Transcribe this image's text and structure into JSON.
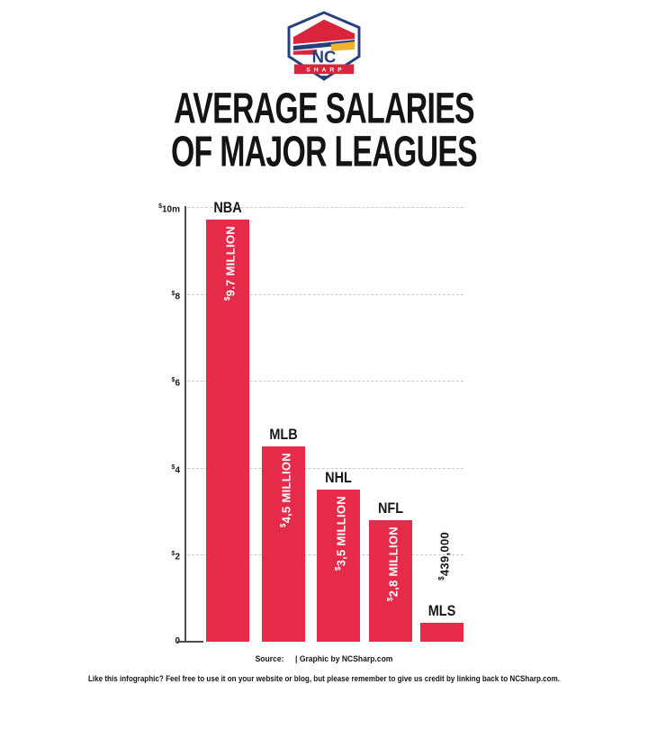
{
  "logo": {
    "nc": "NC",
    "sharp": "SHARP"
  },
  "title": {
    "line1": "AVERAGE SALARIES",
    "line2": "OF MAJOR LEAGUES"
  },
  "chart_data": {
    "type": "bar",
    "title": "Average Salaries of Major Leagues",
    "categories": [
      "NBA",
      "MLB",
      "NHL",
      "NFL",
      "MLS"
    ],
    "values": [
      9.7,
      4.5,
      3.5,
      2.8,
      0.439
    ],
    "value_unit": "million USD",
    "bar_value_labels": [
      "$9.7 MILLION",
      "$4,5 MILLION",
      "$3,5 MILLION",
      "$2,8 MILLION",
      "$439,000"
    ],
    "value_label_placement": [
      "inside",
      "inside",
      "inside",
      "inside",
      "outside"
    ],
    "xlabel": "",
    "ylabel": "",
    "ylim": [
      0,
      10
    ],
    "yticks": [
      {
        "value": 10,
        "label": "$10m"
      },
      {
        "value": 8,
        "label": "$8"
      },
      {
        "value": 6,
        "label": "$6"
      },
      {
        "value": 4,
        "label": "$4"
      },
      {
        "value": 2,
        "label": "$2"
      },
      {
        "value": 0,
        "label": "0"
      }
    ],
    "grid": "horizontal-dashed",
    "legend": "none",
    "colors": {
      "bar": "#e62b4a",
      "bar_text": "#ffffff",
      "outside_text": "#171717",
      "axis": "#4d4d4d",
      "gridline": "#c9c9c9",
      "label": "#171717"
    }
  },
  "source_line": {
    "label": "Source:",
    "divider": "|",
    "credit": "Graphic by NCSharp.com"
  },
  "footer": {
    "text": "Like this infographic? Feel free to use it on your website or blog, but please remember to give us credit by linking back to NCSharp.com."
  }
}
